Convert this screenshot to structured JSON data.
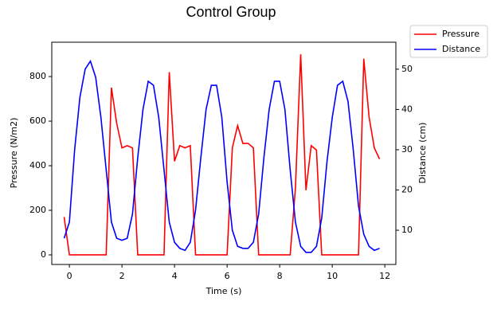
{
  "chart_data": {
    "type": "line",
    "title": "Control Group",
    "x_label": "Time (s)",
    "y_label": "Pressure (N/m2)",
    "y2_label": "Distance (cm)",
    "x": [
      -0.2,
      0,
      0.2,
      0.4,
      0.6,
      0.8,
      1,
      1.2,
      1.4,
      1.6,
      1.8,
      2,
      2.2,
      2.4,
      2.6,
      2.8,
      3,
      3.2,
      3.4,
      3.6,
      3.8,
      4,
      4.2,
      4.4,
      4.6,
      4.8,
      5,
      5.2,
      5.4,
      5.6,
      5.8,
      6,
      6.2,
      6.4,
      6.6,
      6.8,
      7,
      7.2,
      7.4,
      7.6,
      7.8,
      8,
      8.2,
      8.4,
      8.6,
      8.8,
      9,
      9.2,
      9.4,
      9.6,
      9.8,
      10,
      10.2,
      10.4,
      10.6,
      10.8,
      11,
      11.2,
      11.4,
      11.6,
      11.8
    ],
    "series": [
      {
        "name": "Pressure",
        "color": "#ff0000",
        "axis": "y",
        "values": [
          170,
          0,
          0,
          0,
          0,
          0,
          0,
          0,
          0,
          750,
          590,
          480,
          490,
          480,
          0,
          0,
          0,
          0,
          0,
          0,
          820,
          420,
          490,
          480,
          490,
          0,
          0,
          0,
          0,
          0,
          0,
          0,
          480,
          580,
          500,
          500,
          480,
          0,
          0,
          0,
          0,
          0,
          0,
          0,
          300,
          900,
          290,
          490,
          470,
          0,
          0,
          0,
          0,
          0,
          0,
          0,
          0,
          880,
          620,
          480,
          430
        ]
      },
      {
        "name": "Distance",
        "color": "#0000ff",
        "axis": "y2",
        "values": [
          8,
          12,
          30,
          43,
          50,
          52,
          48,
          38,
          25,
          12,
          8,
          7.5,
          8,
          14,
          28,
          40,
          47,
          46,
          38,
          25,
          12,
          7,
          5.5,
          5,
          7,
          15,
          28,
          40,
          46,
          46,
          38,
          22,
          10,
          6,
          5.5,
          5.5,
          7,
          14,
          28,
          40,
          47,
          47,
          40,
          25,
          12,
          6,
          4.5,
          4.5,
          6,
          13,
          27,
          38,
          46,
          47,
          42,
          30,
          16,
          9,
          6,
          5,
          5.5
        ]
      }
    ],
    "xlim": [
      -0.67,
      12.42
    ],
    "xticks": [
      0,
      2,
      4,
      6,
      8,
      10,
      12
    ],
    "ylim": [
      -43,
      954
    ],
    "yticks": [
      0,
      200,
      400,
      600,
      800
    ],
    "y2lim": [
      1.5,
      56.7
    ],
    "y2ticks": [
      10,
      20,
      30,
      40,
      50
    ],
    "grid": false,
    "legend": "outside upper right"
  }
}
